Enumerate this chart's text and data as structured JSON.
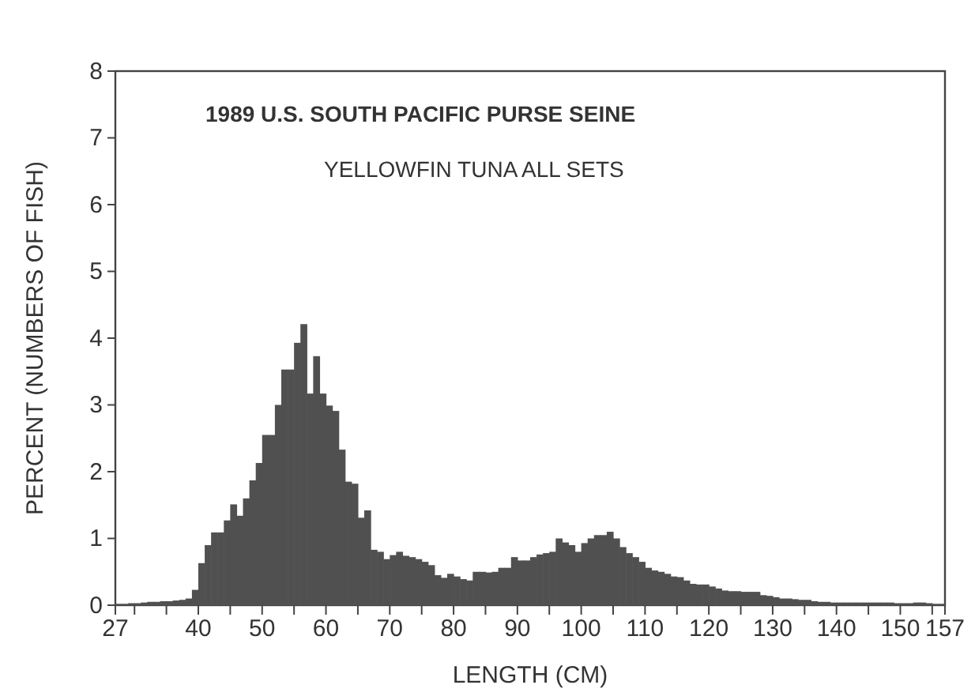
{
  "chart_data": {
    "type": "histogram",
    "title": "1989 U.S. SOUTH PACIFIC PURSE SEINE",
    "subtitle": "YELLOWFIN TUNA ALL SETS",
    "xlabel": "LENGTH (CM)",
    "ylabel": "PERCENT (NUMBERS OF FISH)",
    "color": "#505050",
    "bins": [
      27,
      28,
      29,
      30,
      31,
      32,
      33,
      34,
      35,
      36,
      37,
      38,
      39,
      40,
      41,
      42,
      43,
      44,
      45,
      46,
      47,
      48,
      49,
      50,
      51,
      52,
      53,
      54,
      55,
      56,
      57,
      58,
      59,
      60,
      61,
      62,
      63,
      64,
      65,
      66,
      67,
      68,
      69,
      70,
      71,
      72,
      73,
      74,
      75,
      76,
      77,
      78,
      79,
      80,
      81,
      82,
      83,
      84,
      85,
      86,
      87,
      88,
      89,
      90,
      91,
      92,
      93,
      94,
      95,
      96,
      97,
      98,
      99,
      100,
      101,
      102,
      103,
      104,
      105,
      106,
      107,
      108,
      109,
      110,
      111,
      112,
      113,
      114,
      115,
      116,
      117,
      118,
      119,
      120,
      121,
      122,
      123,
      124,
      125,
      126,
      127,
      128,
      129,
      130,
      131,
      132,
      133,
      134,
      135,
      136,
      137,
      138,
      139,
      140,
      141,
      142,
      143,
      144,
      145,
      146,
      147,
      148,
      149,
      150,
      151,
      152,
      153,
      154,
      155,
      156,
      157
    ],
    "values": [
      0.02,
      0.02,
      0.03,
      0.03,
      0.04,
      0.05,
      0.05,
      0.06,
      0.06,
      0.07,
      0.08,
      0.1,
      0.23,
      0.63,
      0.9,
      1.09,
      1.09,
      1.27,
      1.51,
      1.34,
      1.6,
      1.87,
      2.13,
      2.55,
      2.55,
      3.0,
      3.53,
      3.53,
      3.93,
      4.21,
      3.17,
      3.73,
      3.17,
      2.99,
      2.91,
      2.33,
      1.85,
      1.82,
      1.31,
      1.42,
      0.83,
      0.8,
      0.69,
      0.75,
      0.8,
      0.74,
      0.72,
      0.69,
      0.65,
      0.6,
      0.45,
      0.41,
      0.47,
      0.43,
      0.39,
      0.37,
      0.5,
      0.5,
      0.49,
      0.5,
      0.56,
      0.56,
      0.72,
      0.67,
      0.67,
      0.72,
      0.76,
      0.78,
      0.8,
      1.0,
      0.94,
      0.9,
      0.8,
      0.93,
      1.0,
      1.05,
      1.05,
      1.1,
      1.0,
      0.87,
      0.78,
      0.72,
      0.65,
      0.56,
      0.52,
      0.5,
      0.47,
      0.43,
      0.42,
      0.37,
      0.32,
      0.31,
      0.31,
      0.28,
      0.25,
      0.22,
      0.21,
      0.21,
      0.2,
      0.2,
      0.2,
      0.15,
      0.14,
      0.12,
      0.1,
      0.1,
      0.09,
      0.08,
      0.08,
      0.06,
      0.05,
      0.05,
      0.04,
      0.04,
      0.04,
      0.04,
      0.04,
      0.04,
      0.04,
      0.04,
      0.04,
      0.04,
      0.03,
      0.03,
      0.03,
      0.04,
      0.04,
      0.03,
      0.02,
      0.02
    ],
    "xlim": [
      27,
      157
    ],
    "xticks": [
      27,
      {
        "value": 30,
        "label": null
      },
      {
        "value": 35,
        "label": null
      },
      40,
      {
        "value": 45,
        "label": null
      },
      50,
      {
        "value": 55,
        "label": null
      },
      60,
      {
        "value": 65,
        "label": null
      },
      70,
      {
        "value": 75,
        "label": null
      },
      80,
      {
        "value": 85,
        "label": null
      },
      90,
      {
        "value": 95,
        "label": null
      },
      100,
      {
        "value": 105,
        "label": null
      },
      110,
      {
        "value": 115,
        "label": null
      },
      120,
      {
        "value": 125,
        "label": null
      },
      130,
      {
        "value": 135,
        "label": null
      },
      140,
      {
        "value": 145,
        "label": null
      },
      150,
      {
        "value": 155,
        "label": null
      },
      157
    ],
    "ylim": [
      0,
      8
    ],
    "yticks": [
      0,
      1,
      2,
      3,
      4,
      5,
      6,
      7,
      8
    ]
  }
}
